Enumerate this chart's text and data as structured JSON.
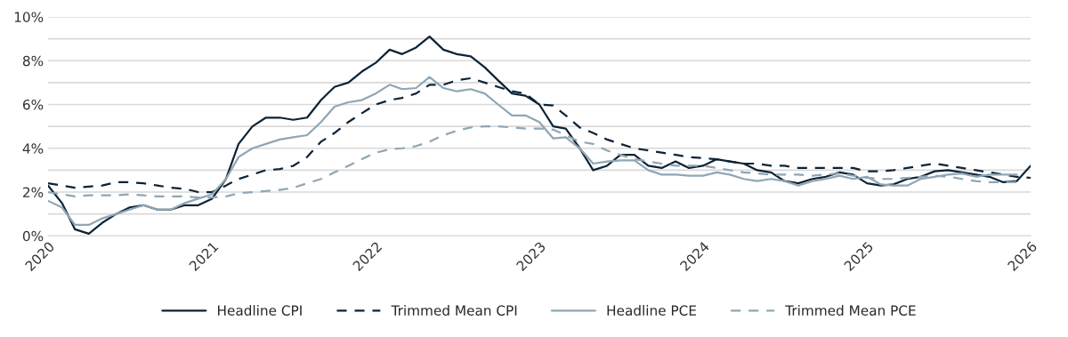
{
  "chart_data": {
    "type": "line",
    "x": [
      "2020-01",
      "2020-02",
      "2020-03",
      "2020-04",
      "2020-05",
      "2020-06",
      "2020-07",
      "2020-08",
      "2020-09",
      "2020-10",
      "2020-11",
      "2020-12",
      "2021-01",
      "2021-02",
      "2021-03",
      "2021-04",
      "2021-05",
      "2021-06",
      "2021-07",
      "2021-08",
      "2021-09",
      "2021-10",
      "2021-11",
      "2021-12",
      "2022-01",
      "2022-02",
      "2022-03",
      "2022-04",
      "2022-05",
      "2022-06",
      "2022-07",
      "2022-08",
      "2022-09",
      "2022-10",
      "2022-11",
      "2022-12",
      "2023-01",
      "2023-02",
      "2023-03",
      "2023-04",
      "2023-05",
      "2023-06",
      "2023-07",
      "2023-08",
      "2023-09",
      "2023-10",
      "2023-11",
      "2023-12",
      "2024-01",
      "2024-02",
      "2024-03",
      "2024-04",
      "2024-05",
      "2024-06",
      "2024-07",
      "2024-08",
      "2024-09",
      "2024-10",
      "2024-11",
      "2024-12",
      "2025-01",
      "2025-02",
      "2025-03",
      "2025-04",
      "2025-05",
      "2025-06",
      "2025-07",
      "2025-08",
      "2025-09",
      "2025-10",
      "2025-11",
      "2025-12",
      "2026-01"
    ],
    "series": [
      {
        "name": "Headline CPI",
        "color": "#0d2336",
        "line_style": "solid",
        "values": [
          2.3,
          1.5,
          0.3,
          0.1,
          0.6,
          1.0,
          1.3,
          1.4,
          1.2,
          1.2,
          1.4,
          1.4,
          1.7,
          2.6,
          4.2,
          5.0,
          5.4,
          5.4,
          5.3,
          5.4,
          6.2,
          6.8,
          7.0,
          7.5,
          7.9,
          8.5,
          8.3,
          8.6,
          9.1,
          8.5,
          8.3,
          8.2,
          7.7,
          7.1,
          6.5,
          6.4,
          6.0,
          5.0,
          4.9,
          4.0,
          3.0,
          3.2,
          3.7,
          3.7,
          3.2,
          3.1,
          3.4,
          3.1,
          3.2,
          3.5,
          3.4,
          3.3,
          3.0,
          2.9,
          2.5,
          2.4,
          2.6,
          2.7,
          2.9,
          2.8,
          2.4,
          2.3,
          2.35,
          2.6,
          2.7,
          2.95,
          3.0,
          2.9,
          2.8,
          2.7,
          2.45,
          2.5,
          3.2
        ]
      },
      {
        "name": "Trimmed Mean CPI",
        "color": "#0d2336",
        "line_style": "dashed",
        "values": [
          2.4,
          2.3,
          2.2,
          2.25,
          2.3,
          2.45,
          2.45,
          2.4,
          2.3,
          2.2,
          2.15,
          2.0,
          2.0,
          2.3,
          2.6,
          2.8,
          3.0,
          3.05,
          3.2,
          3.6,
          4.3,
          4.7,
          5.2,
          5.6,
          6.0,
          6.2,
          6.3,
          6.5,
          6.9,
          6.9,
          7.1,
          7.2,
          7.0,
          6.8,
          6.6,
          6.5,
          6.0,
          5.95,
          5.5,
          4.95,
          4.7,
          4.4,
          4.2,
          4.0,
          3.9,
          3.8,
          3.7,
          3.6,
          3.55,
          3.5,
          3.4,
          3.3,
          3.3,
          3.2,
          3.2,
          3.1,
          3.1,
          3.1,
          3.1,
          3.1,
          2.95,
          2.95,
          3.0,
          3.1,
          3.2,
          3.3,
          3.2,
          3.1,
          3.0,
          2.9,
          2.8,
          2.7,
          2.65
        ]
      },
      {
        "name": "Headline PCE",
        "color": "#8fa6b4",
        "line_style": "solid",
        "values": [
          1.6,
          1.3,
          0.5,
          0.5,
          0.8,
          1.0,
          1.2,
          1.4,
          1.2,
          1.2,
          1.5,
          1.7,
          1.9,
          2.6,
          3.6,
          4.0,
          4.2,
          4.4,
          4.5,
          4.6,
          5.2,
          5.9,
          6.1,
          6.2,
          6.5,
          6.9,
          6.7,
          6.75,
          7.25,
          6.75,
          6.6,
          6.7,
          6.5,
          6.0,
          5.5,
          5.5,
          5.2,
          4.45,
          4.5,
          4.0,
          3.3,
          3.4,
          3.45,
          3.45,
          3.0,
          2.8,
          2.8,
          2.75,
          2.75,
          2.9,
          2.8,
          2.6,
          2.5,
          2.6,
          2.5,
          2.3,
          2.5,
          2.6,
          2.75,
          2.6,
          2.7,
          2.35,
          2.3,
          2.3,
          2.6,
          2.7,
          2.8,
          2.85,
          2.7,
          2.8,
          2.8,
          2.8,
          null
        ]
      },
      {
        "name": "Trimmed Mean PCE",
        "color": "#8fa6b4",
        "line_style": "dashed",
        "values": [
          2.0,
          1.9,
          1.8,
          1.85,
          1.85,
          1.85,
          1.9,
          1.85,
          1.8,
          1.8,
          1.8,
          1.75,
          1.75,
          1.8,
          1.95,
          2.0,
          2.05,
          2.1,
          2.2,
          2.4,
          2.6,
          2.9,
          3.2,
          3.5,
          3.8,
          3.95,
          4.0,
          4.1,
          4.3,
          4.6,
          4.8,
          4.95,
          5.0,
          5.0,
          4.95,
          4.9,
          4.9,
          4.85,
          4.6,
          4.3,
          4.2,
          3.9,
          3.7,
          3.5,
          3.4,
          3.3,
          3.2,
          3.2,
          3.2,
          3.1,
          3.0,
          2.9,
          2.85,
          2.8,
          2.8,
          2.8,
          2.75,
          2.8,
          2.85,
          2.75,
          2.65,
          2.6,
          2.6,
          2.65,
          2.7,
          2.75,
          2.7,
          2.6,
          2.5,
          2.45,
          2.45,
          2.45,
          null
        ]
      }
    ],
    "xlim": [
      "2020-01",
      "2026-01"
    ],
    "xticks": [
      {
        "value": "2020",
        "label": "2020"
      },
      {
        "value": "2021",
        "label": "2021"
      },
      {
        "value": "2022",
        "label": "2022"
      },
      {
        "value": "2023",
        "label": "2023"
      },
      {
        "value": "2024",
        "label": "2024"
      },
      {
        "value": "2025",
        "label": "2025"
      },
      {
        "value": "2026",
        "label": "2026"
      }
    ],
    "ylim": [
      0,
      10
    ],
    "yticks": [
      {
        "value": 0,
        "label": "0%"
      },
      {
        "value": 1,
        "label": null
      },
      {
        "value": 2,
        "label": "2%"
      },
      {
        "value": 3,
        "label": null
      },
      {
        "value": 4,
        "label": "4%"
      },
      {
        "value": 5,
        "label": null
      },
      {
        "value": 6,
        "label": "6%"
      },
      {
        "value": 7,
        "label": null
      },
      {
        "value": 8,
        "label": "8%"
      },
      {
        "value": 9,
        "label": null
      },
      {
        "value": 10,
        "label": "10%"
      }
    ],
    "grid": "y",
    "legend": "bottom"
  }
}
